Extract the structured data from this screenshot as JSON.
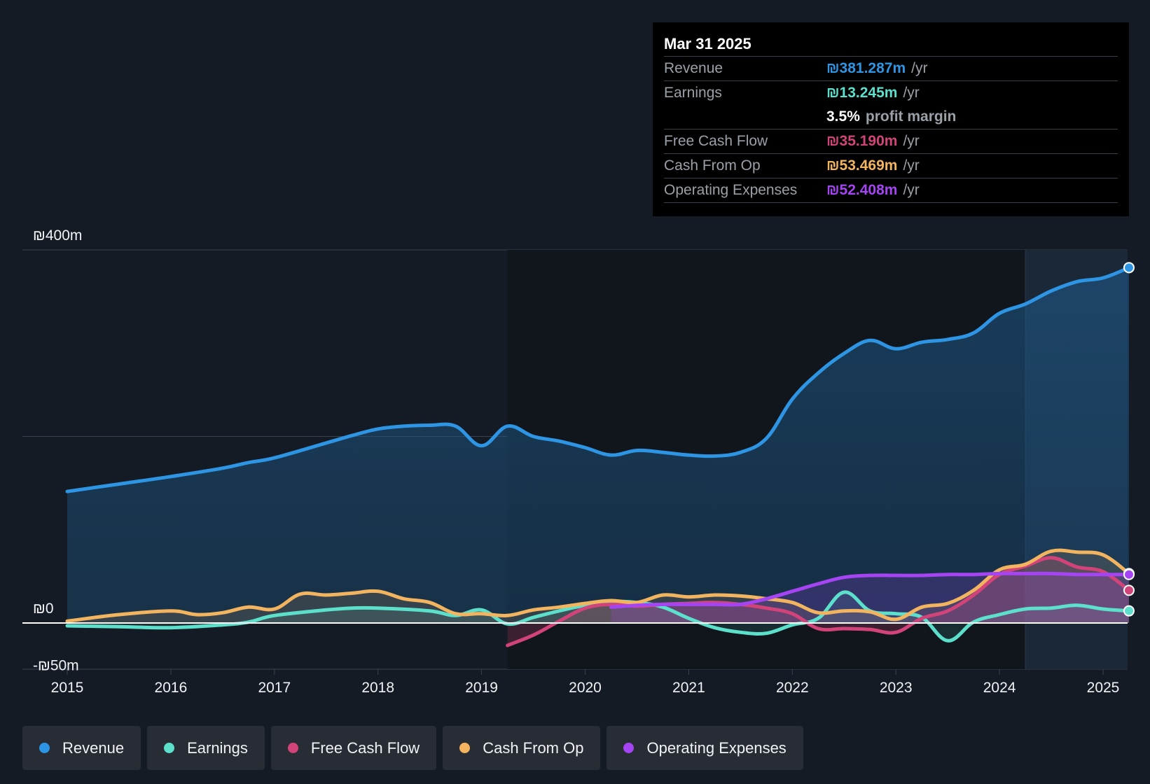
{
  "colors": {
    "revenue": "#2d95e3",
    "earnings": "#5ce0cc",
    "fcf": "#d24479",
    "cfo": "#f3b460",
    "opex": "#a544f2"
  },
  "tooltip": {
    "date": "Mar 31 2025",
    "rows": [
      {
        "name": "Revenue",
        "value": "₪381.287m",
        "unit": "/yr"
      },
      {
        "name": "Earnings",
        "value": "₪13.245m",
        "unit": "/yr"
      },
      {
        "margin_value": "3.5%",
        "margin_text": "profit margin"
      },
      {
        "name": "Free Cash Flow",
        "value": "₪35.190m",
        "unit": "/yr"
      },
      {
        "name": "Cash From Op",
        "value": "₪53.469m",
        "unit": "/yr"
      },
      {
        "name": "Operating Expenses",
        "value": "₪52.408m",
        "unit": "/yr"
      }
    ]
  },
  "legend": [
    {
      "label": "Revenue",
      "key": "revenue"
    },
    {
      "label": "Earnings",
      "key": "earnings"
    },
    {
      "label": "Free Cash Flow",
      "key": "fcf"
    },
    {
      "label": "Cash From Op",
      "key": "cfo"
    },
    {
      "label": "Operating Expenses",
      "key": "opex"
    }
  ],
  "chart_data": {
    "type": "area",
    "title": "",
    "xlabel": "",
    "ylabel": "",
    "xlim": [
      2014.56,
      2025.25
    ],
    "ylim": [
      -50,
      400
    ],
    "y_tick_labels": [
      {
        "value": 400,
        "label": "₪400m"
      },
      {
        "value": 0,
        "label": "₪0"
      },
      {
        "value": -50,
        "label": "-₪50m"
      }
    ],
    "x_ticks": [
      2015,
      2016,
      2017,
      2018,
      2019,
      2020,
      2021,
      2022,
      2023,
      2024,
      2025
    ],
    "x_tick_labels": [
      "2015",
      "2016",
      "2017",
      "2018",
      "2019",
      "2020",
      "2021",
      "2022",
      "2023",
      "2024",
      "2025"
    ],
    "gridlines_y": [
      400,
      200,
      0
    ],
    "forecast_band_start": 2024.25,
    "series": [
      {
        "name": "Revenue",
        "key": "revenue",
        "points": [
          [
            2015.0,
            141
          ],
          [
            2015.5,
            149
          ],
          [
            2016.0,
            157
          ],
          [
            2016.5,
            166
          ],
          [
            2016.75,
            172
          ],
          [
            2017.0,
            177
          ],
          [
            2017.5,
            193
          ],
          [
            2017.75,
            201
          ],
          [
            2018.0,
            208
          ],
          [
            2018.25,
            211
          ],
          [
            2018.5,
            212
          ],
          [
            2018.75,
            211
          ],
          [
            2019.0,
            190
          ],
          [
            2019.25,
            211
          ],
          [
            2019.5,
            200
          ],
          [
            2019.75,
            195
          ],
          [
            2020.0,
            188
          ],
          [
            2020.25,
            180
          ],
          [
            2020.5,
            185
          ],
          [
            2020.75,
            183
          ],
          [
            2021.0,
            180
          ],
          [
            2021.25,
            179
          ],
          [
            2021.5,
            183
          ],
          [
            2021.75,
            198
          ],
          [
            2022.0,
            240
          ],
          [
            2022.25,
            268
          ],
          [
            2022.5,
            289
          ],
          [
            2022.75,
            303
          ],
          [
            2023.0,
            294
          ],
          [
            2023.25,
            301
          ],
          [
            2023.5,
            304
          ],
          [
            2023.75,
            311
          ],
          [
            2024.0,
            332
          ],
          [
            2024.25,
            342
          ],
          [
            2024.5,
            356
          ],
          [
            2024.75,
            366
          ],
          [
            2025.0,
            370
          ],
          [
            2025.25,
            381
          ]
        ]
      },
      {
        "name": "Earnings",
        "key": "earnings",
        "points": [
          [
            2015.0,
            -3
          ],
          [
            2015.5,
            -4
          ],
          [
            2016.0,
            -5
          ],
          [
            2016.5,
            -2
          ],
          [
            2016.75,
            1
          ],
          [
            2017.0,
            8
          ],
          [
            2017.5,
            14
          ],
          [
            2017.75,
            16
          ],
          [
            2018.0,
            16
          ],
          [
            2018.5,
            13
          ],
          [
            2018.75,
            8
          ],
          [
            2019.0,
            14
          ],
          [
            2019.25,
            -1
          ],
          [
            2019.5,
            6
          ],
          [
            2019.75,
            13
          ],
          [
            2020.0,
            19
          ],
          [
            2020.25,
            23
          ],
          [
            2020.5,
            22
          ],
          [
            2020.75,
            17
          ],
          [
            2021.0,
            5
          ],
          [
            2021.25,
            -5
          ],
          [
            2021.5,
            -10
          ],
          [
            2021.75,
            -11
          ],
          [
            2022.0,
            -2
          ],
          [
            2022.25,
            5
          ],
          [
            2022.5,
            33
          ],
          [
            2022.75,
            13
          ],
          [
            2023.0,
            10
          ],
          [
            2023.25,
            6
          ],
          [
            2023.5,
            -19
          ],
          [
            2023.75,
            1
          ],
          [
            2024.0,
            9
          ],
          [
            2024.25,
            15
          ],
          [
            2024.5,
            16
          ],
          [
            2024.75,
            19
          ],
          [
            2025.0,
            15
          ],
          [
            2025.25,
            13
          ]
        ]
      },
      {
        "name": "Free Cash Flow",
        "key": "fcf",
        "points": [
          [
            2019.25,
            -24
          ],
          [
            2019.5,
            -13
          ],
          [
            2019.75,
            2
          ],
          [
            2020.0,
            16
          ],
          [
            2020.25,
            20
          ],
          [
            2020.5,
            18
          ],
          [
            2020.75,
            20
          ],
          [
            2021.0,
            21
          ],
          [
            2021.25,
            22
          ],
          [
            2021.5,
            20
          ],
          [
            2021.75,
            16
          ],
          [
            2022.0,
            10
          ],
          [
            2022.25,
            -6
          ],
          [
            2022.5,
            -6
          ],
          [
            2022.75,
            -7
          ],
          [
            2023.0,
            -10
          ],
          [
            2023.25,
            5
          ],
          [
            2023.5,
            13
          ],
          [
            2023.75,
            30
          ],
          [
            2024.0,
            52
          ],
          [
            2024.25,
            61
          ],
          [
            2024.5,
            70
          ],
          [
            2024.75,
            60
          ],
          [
            2025.0,
            55
          ],
          [
            2025.25,
            35
          ]
        ]
      },
      {
        "name": "Cash From Op",
        "key": "cfo",
        "points": [
          [
            2015.0,
            2
          ],
          [
            2015.5,
            9
          ],
          [
            2016.0,
            13
          ],
          [
            2016.25,
            9
          ],
          [
            2016.5,
            11
          ],
          [
            2016.75,
            17
          ],
          [
            2017.0,
            15
          ],
          [
            2017.25,
            31
          ],
          [
            2017.5,
            30
          ],
          [
            2017.75,
            32
          ],
          [
            2018.0,
            34
          ],
          [
            2018.25,
            26
          ],
          [
            2018.5,
            22
          ],
          [
            2018.75,
            10
          ],
          [
            2019.0,
            10
          ],
          [
            2019.25,
            8
          ],
          [
            2019.5,
            14
          ],
          [
            2019.75,
            17
          ],
          [
            2020.0,
            21
          ],
          [
            2020.25,
            24
          ],
          [
            2020.5,
            22
          ],
          [
            2020.75,
            30
          ],
          [
            2021.0,
            28
          ],
          [
            2021.25,
            30
          ],
          [
            2021.5,
            29
          ],
          [
            2021.75,
            26
          ],
          [
            2022.0,
            22
          ],
          [
            2022.25,
            11
          ],
          [
            2022.5,
            13
          ],
          [
            2022.75,
            12
          ],
          [
            2023.0,
            4
          ],
          [
            2023.25,
            17
          ],
          [
            2023.5,
            21
          ],
          [
            2023.75,
            35
          ],
          [
            2024.0,
            57
          ],
          [
            2024.25,
            63
          ],
          [
            2024.5,
            77
          ],
          [
            2024.75,
            76
          ],
          [
            2025.0,
            73
          ],
          [
            2025.25,
            53
          ]
        ]
      },
      {
        "name": "Operating Expenses",
        "key": "opex",
        "points": [
          [
            2020.25,
            17
          ],
          [
            2020.5,
            19
          ],
          [
            2020.75,
            20
          ],
          [
            2021.0,
            20
          ],
          [
            2021.25,
            20
          ],
          [
            2021.5,
            20
          ],
          [
            2021.75,
            26
          ],
          [
            2022.0,
            34
          ],
          [
            2022.25,
            42
          ],
          [
            2022.5,
            49
          ],
          [
            2022.75,
            51
          ],
          [
            2023.0,
            51
          ],
          [
            2023.25,
            51
          ],
          [
            2023.5,
            52
          ],
          [
            2023.75,
            52
          ],
          [
            2024.0,
            53
          ],
          [
            2024.25,
            53
          ],
          [
            2024.5,
            53
          ],
          [
            2024.75,
            52
          ],
          [
            2025.0,
            52
          ],
          [
            2025.25,
            52
          ]
        ]
      }
    ]
  }
}
